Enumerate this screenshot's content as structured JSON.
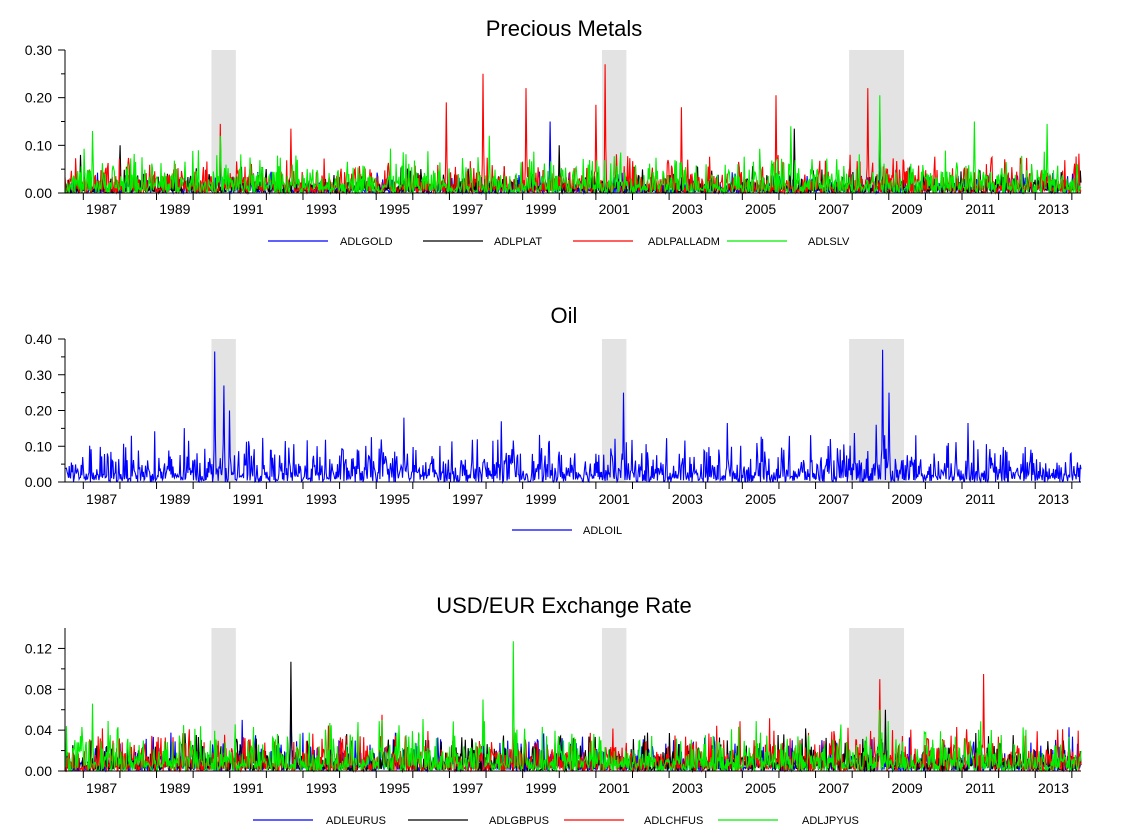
{
  "chart_data": [
    {
      "type": "line",
      "title": "Precious Metals",
      "xlabel": "",
      "ylabel": "",
      "x_range": [
        "1986-07",
        "2014-03"
      ],
      "x_ticks": [
        "1987",
        "1989",
        "1991",
        "1993",
        "1995",
        "1997",
        "1999",
        "2001",
        "2003",
        "2005",
        "2007",
        "2009",
        "2011",
        "2013"
      ],
      "ylim": [
        0,
        0.3
      ],
      "y_ticks": [
        0.0,
        0.1,
        0.2,
        0.3
      ],
      "y_tick_labels": [
        "0.00",
        "0.10",
        "0.20",
        "0.30"
      ],
      "grid": false,
      "legend_position": "bottom",
      "shaded_periods": [
        [
          "1990-07",
          "1991-03"
        ],
        [
          "2001-03",
          "2001-11"
        ],
        [
          "2007-12",
          "2009-06"
        ]
      ],
      "series": [
        {
          "name": "ADLGOLD",
          "color": "#0000ff",
          "baseline": 0.012,
          "spikes": [
            [
              "1990-10",
              0.08
            ],
            [
              "1999-10",
              0.15
            ],
            [
              "2008-10",
              0.09
            ]
          ]
        },
        {
          "name": "ADLPLAT",
          "color": "#000000",
          "baseline": 0.015,
          "spikes": [
            [
              "1986-12",
              0.08
            ],
            [
              "1988-01",
              0.1
            ],
            [
              "2000-01",
              0.1
            ],
            [
              "2006-06",
              0.135
            ],
            [
              "2008-10",
              0.16
            ]
          ]
        },
        {
          "name": "ADLPALLADM",
          "color": "#ff0000",
          "baseline": 0.022,
          "spikes": [
            [
              "1990-10",
              0.145
            ],
            [
              "1992-09",
              0.135
            ],
            [
              "1996-12",
              0.19
            ],
            [
              "1997-12",
              0.25
            ],
            [
              "1999-02",
              0.22
            ],
            [
              "2001-01",
              0.185
            ],
            [
              "2001-04",
              0.27
            ],
            [
              "2003-05",
              0.18
            ],
            [
              "2005-12",
              0.205
            ],
            [
              "2008-06",
              0.22
            ]
          ]
        },
        {
          "name": "ADLSLV",
          "color": "#00ee00",
          "baseline": 0.025,
          "spikes": [
            [
              "1987-04",
              0.13
            ],
            [
              "1990-10",
              0.12
            ],
            [
              "1998-02",
              0.12
            ],
            [
              "2006-05",
              0.14
            ],
            [
              "2008-10",
              0.205
            ],
            [
              "2011-05",
              0.15
            ],
            [
              "2013-05",
              0.145
            ]
          ]
        }
      ]
    },
    {
      "type": "line",
      "title": "Oil",
      "xlabel": "",
      "ylabel": "",
      "x_range": [
        "1986-07",
        "2014-03"
      ],
      "x_ticks": [
        "1987",
        "1989",
        "1991",
        "1993",
        "1995",
        "1997",
        "1999",
        "2001",
        "2003",
        "2005",
        "2007",
        "2009",
        "2011",
        "2013"
      ],
      "ylim": [
        0,
        0.4
      ],
      "y_ticks": [
        0.0,
        0.1,
        0.2,
        0.3,
        0.4
      ],
      "y_tick_labels": [
        "0.00",
        "0.10",
        "0.20",
        "0.30",
        "0.40"
      ],
      "grid": false,
      "legend_position": "bottom",
      "shaded_periods": [
        [
          "1990-07",
          "1991-03"
        ],
        [
          "2001-03",
          "2001-11"
        ],
        [
          "2007-12",
          "2009-06"
        ]
      ],
      "series": [
        {
          "name": "ADLOIL",
          "color": "#0000ff",
          "baseline": 0.035,
          "spikes": [
            [
              "1990-08",
              0.365
            ],
            [
              "1990-11",
              0.27
            ],
            [
              "1991-01",
              0.2
            ],
            [
              "1995-10",
              0.18
            ],
            [
              "1998-06",
              0.17
            ],
            [
              "2001-10",
              0.25
            ],
            [
              "2004-08",
              0.165
            ],
            [
              "2008-09",
              0.16
            ],
            [
              "2008-11",
              0.37
            ],
            [
              "2009-01",
              0.25
            ],
            [
              "2011-03",
              0.165
            ]
          ]
        }
      ]
    },
    {
      "type": "line",
      "title": "USD/EUR Exchange Rate",
      "xlabel": "",
      "ylabel": "",
      "x_range": [
        "1986-07",
        "2014-03"
      ],
      "x_ticks": [
        "1987",
        "1989",
        "1991",
        "1993",
        "1995",
        "1997",
        "1999",
        "2001",
        "2003",
        "2005",
        "2007",
        "2009",
        "2011",
        "2013"
      ],
      "ylim": [
        0,
        0.14
      ],
      "y_ticks": [
        0.0,
        0.04,
        0.08,
        0.12
      ],
      "y_tick_labels": [
        "0.00",
        "0.04",
        "0.08",
        "0.12"
      ],
      "grid": false,
      "legend_position": "bottom",
      "shaded_periods": [
        [
          "1990-07",
          "1991-03"
        ],
        [
          "2001-03",
          "2001-11"
        ],
        [
          "2007-12",
          "2009-06"
        ]
      ],
      "series": [
        {
          "name": "ADLEURUS",
          "color": "#0000ff",
          "baseline": 0.01,
          "spikes": [
            [
              "1991-05",
              0.05
            ],
            [
              "1992-09",
              0.08
            ],
            [
              "2008-10",
              0.06
            ]
          ]
        },
        {
          "name": "ADLGBPUS",
          "color": "#000000",
          "baseline": 0.01,
          "spikes": [
            [
              "1992-09",
              0.107
            ],
            [
              "2008-10",
              0.07
            ],
            [
              "2008-12",
              0.06
            ]
          ]
        },
        {
          "name": "ADLCHFUS",
          "color": "#ff0000",
          "baseline": 0.012,
          "spikes": [
            [
              "1995-03",
              0.055
            ],
            [
              "2008-10",
              0.09
            ],
            [
              "2011-08",
              0.095
            ]
          ]
        },
        {
          "name": "ADLJPYUS",
          "color": "#00ee00",
          "baseline": 0.013,
          "spikes": [
            [
              "1987-04",
              0.066
            ],
            [
              "1995-03",
              0.05
            ],
            [
              "1997-12",
              0.07
            ],
            [
              "1998-10",
              0.127
            ],
            [
              "2008-10",
              0.06
            ]
          ]
        }
      ]
    }
  ]
}
